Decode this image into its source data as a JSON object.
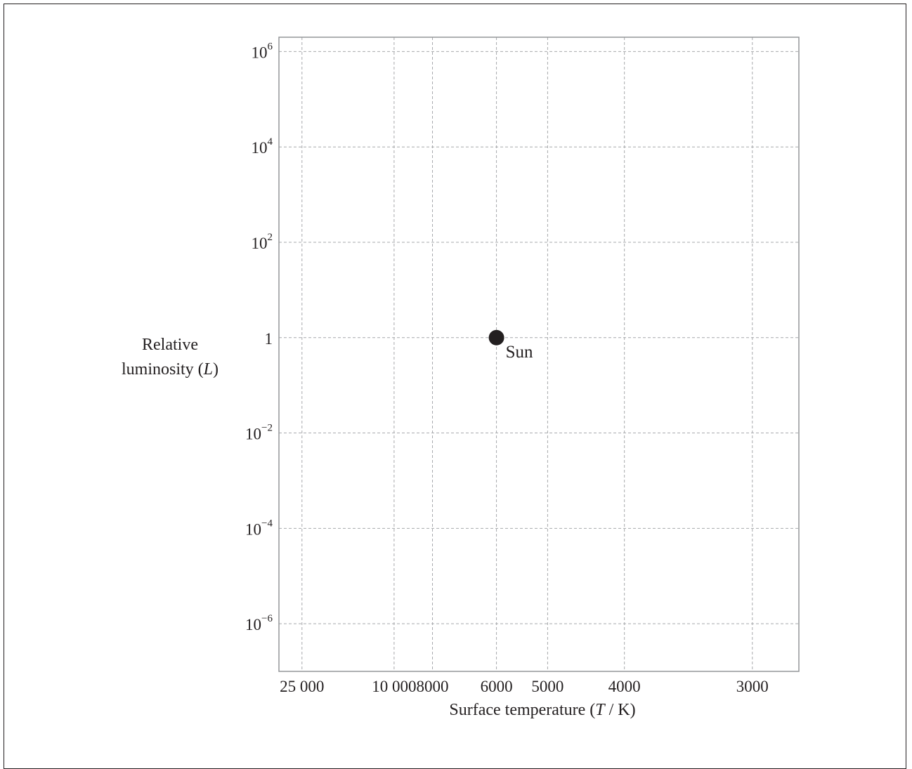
{
  "chart_data": {
    "type": "scatter",
    "title": "",
    "xlabel": "Surface temperature (T / K)",
    "ylabel_lines": [
      "Relative",
      "luminosity (L)"
    ],
    "x_scale": "reciprocal",
    "x_reversed": true,
    "xlim": [
      40000,
      2750
    ],
    "y_scale": "log",
    "ylim": [
      1e-07,
      2000000
    ],
    "grid": true,
    "x_ticks": [
      {
        "value": 25000,
        "label": "25 000"
      },
      {
        "value": 10000,
        "label": "10 000"
      },
      {
        "value": 8000,
        "label": "8000"
      },
      {
        "value": 6000,
        "label": "6000"
      },
      {
        "value": 5000,
        "label": "5000"
      },
      {
        "value": 4000,
        "label": "4000"
      },
      {
        "value": 3000,
        "label": "3000"
      }
    ],
    "y_ticks": [
      {
        "value": 1000000,
        "base": "10",
        "exp": "6"
      },
      {
        "value": 10000,
        "base": "10",
        "exp": "4"
      },
      {
        "value": 100,
        "base": "10",
        "exp": "2"
      },
      {
        "value": 1,
        "base": "1",
        "exp": ""
      },
      {
        "value": 0.01,
        "base": "10",
        "exp": "−2"
      },
      {
        "value": 0.0001,
        "base": "10",
        "exp": "−4"
      },
      {
        "value": 1e-06,
        "base": "10",
        "exp": "−6"
      }
    ],
    "points": [
      {
        "name": "Sun",
        "x": 6000,
        "y": 1,
        "color": "#231f20"
      }
    ]
  }
}
